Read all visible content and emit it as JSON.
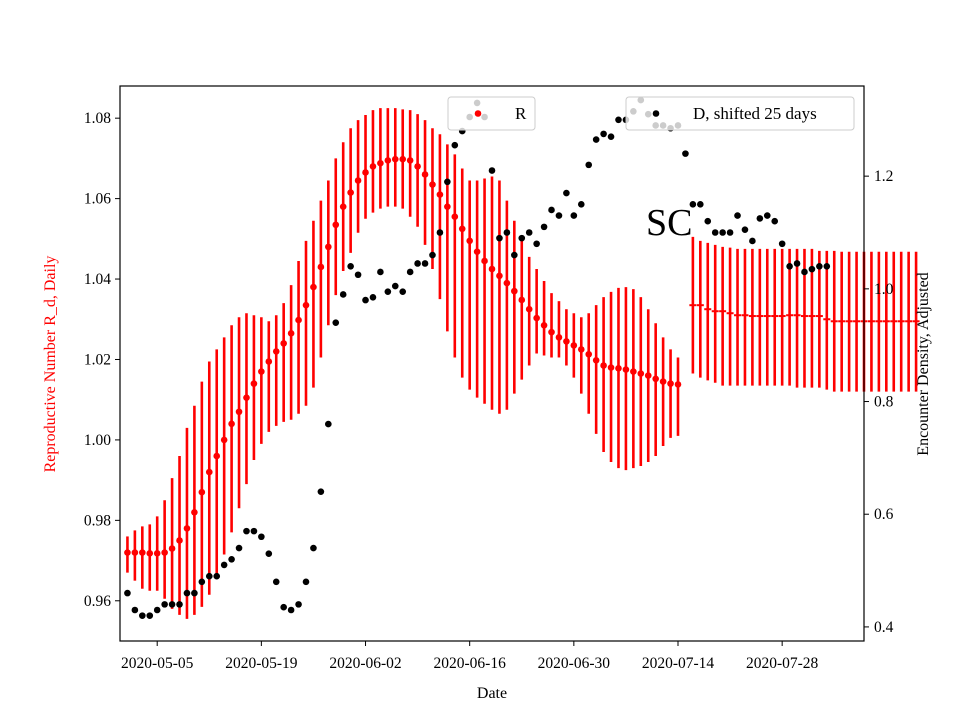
{
  "chart_data": {
    "type": "scatter",
    "title": "",
    "xlabel": "Date",
    "ylabel_left": "Reproductive Number R_d, Daily",
    "ylabel_right": "Encounter Density, Adjusted",
    "annotation": "SC",
    "xlim": [
      "2020-04-30",
      "2020-08-08"
    ],
    "ylim_left": [
      0.95,
      1.088
    ],
    "ylim_right": [
      0.375,
      1.36
    ],
    "x_ticks": [
      "2020-05-05",
      "2020-05-19",
      "2020-06-02",
      "2020-06-16",
      "2020-06-30",
      "2020-07-14",
      "2020-07-28"
    ],
    "y_ticks_left": [
      "0.96",
      "0.98",
      "1.00",
      "1.02",
      "1.04",
      "1.06",
      "1.08"
    ],
    "y_ticks_right": [
      "0.4",
      "0.6",
      "0.8",
      "1.0",
      "1.2"
    ],
    "grid": false,
    "legend": [
      {
        "name": "R",
        "placement": "top-center"
      },
      {
        "name": "D, shifted 25 days",
        "placement": "top-right"
      }
    ],
    "colors": {
      "R": "#ff0000",
      "D": "#000000",
      "left_axis": "#ff0000",
      "right_axis": "#000000"
    },
    "series": [
      {
        "name": "R",
        "axis": "left",
        "style": "points with vertical error bars",
        "start_date": "2020-05-01",
        "y": [
          0.972,
          0.972,
          0.972,
          0.9718,
          0.9718,
          0.972,
          0.973,
          0.975,
          0.978,
          0.982,
          0.987,
          0.992,
          0.996,
          1.0,
          1.004,
          1.007,
          1.0105,
          1.014,
          1.017,
          1.0195,
          1.022,
          1.024,
          1.0265,
          1.0298,
          1.0335,
          1.038,
          1.043,
          1.048,
          1.0535,
          1.058,
          1.0615,
          1.0645,
          1.0665,
          1.068,
          1.0688,
          1.0695,
          1.0698,
          1.0698,
          1.0695,
          1.068,
          1.066,
          1.0635,
          1.061,
          1.058,
          1.0555,
          1.0525,
          1.0495,
          1.0468,
          1.0445,
          1.0425,
          1.0408,
          1.039,
          1.037,
          1.0348,
          1.0325,
          1.0303,
          1.0285,
          1.0268,
          1.0255,
          1.0245,
          1.0235,
          1.0225,
          1.0213,
          1.0198,
          1.0185,
          1.018,
          1.0178,
          1.0175,
          1.017,
          1.0165,
          1.016,
          1.0152,
          1.0145,
          1.014,
          1.0138
        ],
        "err_low": [
          0.967,
          0.965,
          0.963,
          0.9625,
          0.9625,
          0.9605,
          0.958,
          0.9565,
          0.9555,
          0.9565,
          0.9585,
          0.9615,
          0.9655,
          0.9715,
          0.977,
          0.983,
          0.989,
          0.995,
          0.999,
          1.002,
          1.0035,
          1.0045,
          1.005,
          1.0065,
          1.0085,
          1.013,
          1.0205,
          1.0285,
          1.036,
          1.042,
          1.0465,
          1.0515,
          1.055,
          1.0565,
          1.0575,
          1.058,
          1.058,
          1.0575,
          1.0555,
          1.053,
          1.0485,
          1.0425,
          1.035,
          1.027,
          1.0205,
          1.0155,
          1.0125,
          1.0105,
          1.009,
          1.0075,
          1.0065,
          1.0075,
          1.0115,
          1.015,
          1.0185,
          1.0215,
          1.021,
          1.0205,
          1.0205,
          1.0185,
          1.0155,
          1.0115,
          1.0065,
          1.0015,
          0.997,
          0.9945,
          0.993,
          0.9925,
          0.993,
          0.9935,
          0.9945,
          0.996,
          0.9985,
          1.0005,
          1.001
        ],
        "err_high": [
          0.976,
          0.9775,
          0.9785,
          0.979,
          0.981,
          0.985,
          0.9905,
          0.996,
          1.003,
          1.0085,
          1.0145,
          1.0195,
          1.0225,
          1.0255,
          1.0285,
          1.0305,
          1.0315,
          1.031,
          1.0305,
          1.0295,
          1.031,
          1.034,
          1.0385,
          1.0445,
          1.0495,
          1.0545,
          1.0595,
          1.0645,
          1.07,
          1.074,
          1.0775,
          1.0795,
          1.0808,
          1.082,
          1.0825,
          1.0825,
          1.0825,
          1.0822,
          1.082,
          1.081,
          1.0795,
          1.0775,
          1.076,
          1.0735,
          1.071,
          1.0675,
          1.0645,
          1.0645,
          1.065,
          1.0655,
          1.0645,
          1.0595,
          1.0545,
          1.0495,
          1.0455,
          1.0425,
          1.0395,
          1.0365,
          1.0345,
          1.0325,
          1.0315,
          1.0305,
          1.0315,
          1.0335,
          1.0355,
          1.0368,
          1.0378,
          1.038,
          1.0375,
          1.0355,
          1.0325,
          1.029,
          1.0255,
          1.0225,
          1.0205
        ]
      },
      {
        "name": "R",
        "axis": "left",
        "style": "dash markers with vertical error bars",
        "start_date": "2020-07-16",
        "y": [
          1.0335,
          1.0335,
          1.0325,
          1.032,
          1.032,
          1.0315,
          1.031,
          1.031,
          1.0308,
          1.0308,
          1.0308,
          1.0308,
          1.0308,
          1.031,
          1.031,
          1.0308,
          1.0308,
          1.0308,
          1.03,
          1.0295,
          1.0295,
          1.0295,
          1.0295,
          1.0295,
          1.0295,
          1.0295,
          1.0295,
          1.0295,
          1.0295,
          1.0295,
          1.0295
        ],
        "err_low": [
          1.0165,
          1.0155,
          1.0148,
          1.0142,
          1.0135,
          1.0135,
          1.0135,
          1.0135,
          1.0135,
          1.0135,
          1.0135,
          1.0135,
          1.0135,
          1.0135,
          1.013,
          1.013,
          1.013,
          1.013,
          1.0125,
          1.012,
          1.012,
          1.012,
          1.012,
          1.012,
          1.012,
          1.012,
          1.012,
          1.012,
          1.012,
          1.012,
          1.012
        ],
        "err_high": [
          1.0505,
          1.0495,
          1.049,
          1.0485,
          1.048,
          1.0478,
          1.0475,
          1.0475,
          1.0475,
          1.0475,
          1.0475,
          1.0475,
          1.0475,
          1.0475,
          1.0475,
          1.0475,
          1.0475,
          1.047,
          1.047,
          1.047,
          1.0468,
          1.0468,
          1.0468,
          1.0468,
          1.0468,
          1.0468,
          1.0468,
          1.0468,
          1.0468,
          1.0468,
          1.0468
        ]
      },
      {
        "name": "D, shifted 25 days",
        "axis": "right",
        "style": "points",
        "start_date": "2020-05-01",
        "y": [
          0.46,
          0.43,
          0.42,
          0.42,
          0.43,
          0.44,
          0.44,
          0.44,
          0.46,
          0.46,
          0.48,
          0.49,
          0.49,
          0.51,
          0.52,
          0.54,
          0.57,
          0.57,
          0.56,
          0.53,
          0.48,
          0.435,
          0.43,
          0.44,
          0.48,
          0.54,
          0.64,
          0.76,
          0.94,
          0.99,
          1.04,
          1.025,
          0.98,
          0.985,
          1.03,
          0.995,
          1.005,
          0.995,
          1.03,
          1.045,
          1.045,
          1.06,
          1.1,
          1.19,
          1.255,
          1.28,
          1.305,
          1.33,
          1.305,
          1.21,
          1.09,
          1.1,
          1.06,
          1.09,
          1.1,
          1.08,
          1.11,
          1.14,
          1.13,
          1.17,
          1.13,
          1.15,
          1.22,
          1.265,
          1.275,
          1.27,
          1.3,
          1.3,
          1.315,
          1.335,
          1.31,
          1.29,
          1.29,
          1.285,
          1.29,
          1.24,
          1.15,
          1.15,
          1.12,
          1.1,
          1.1,
          1.1,
          1.13,
          1.105,
          1.085,
          1.125,
          1.13,
          1.12,
          1.08,
          1.04,
          1.045,
          1.03,
          1.035,
          1.04,
          1.04
        ]
      }
    ]
  }
}
